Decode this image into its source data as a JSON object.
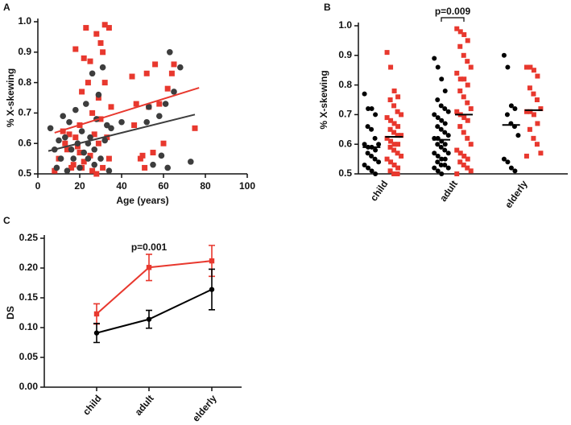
{
  "chart_data": [
    {
      "type": "scatter",
      "panel_label": "A",
      "ylabel": "% X-skewing",
      "xlabel": "Age (years)",
      "xlim": [
        0,
        100
      ],
      "xticks": [
        0,
        20,
        40,
        60,
        80,
        100
      ],
      "ylim": [
        0.5,
        1
      ],
      "yticks": [
        0.5,
        0.6,
        0.7,
        0.8,
        0.9,
        {
          "value": 1,
          "label": "1.0"
        }
      ],
      "series": [
        {
          "color": "#e8382e",
          "marker": "square",
          "x": [
            8,
            10,
            12,
            13,
            14,
            15,
            16,
            17,
            18,
            18,
            19,
            20,
            20,
            21,
            22,
            23,
            24,
            25,
            25,
            26,
            27,
            28,
            28,
            29,
            29,
            30,
            30,
            31,
            31,
            32,
            32,
            33,
            34,
            34,
            35,
            22,
            21,
            26,
            45,
            46,
            47,
            49,
            50,
            51,
            52,
            53,
            55,
            56,
            58,
            60,
            62,
            64,
            65,
            75
          ],
          "values": [
            0.51,
            0.55,
            0.64,
            0.6,
            0.58,
            0.63,
            0.52,
            0.53,
            0.62,
            0.91,
            0.59,
            0.57,
            0.66,
            0.52,
            0.54,
            0.98,
            0.8,
            0.87,
            0.56,
            0.7,
            0.63,
            0.5,
            0.96,
            0.6,
            0.75,
            0.68,
            0.93,
            0.52,
            0.9,
            0.8,
            0.99,
            0.62,
            0.98,
            0.55,
            0.72,
            0.88,
            0.77,
            0.51,
            0.82,
            0.66,
            0.73,
            0.55,
            0.56,
            0.52,
            0.83,
            0.72,
            0.57,
            0.86,
            0.73,
            0.6,
            0.78,
            0.83,
            0.86,
            0.65
          ],
          "trend": {
            "x": [
              8,
              77
            ],
            "values": [
              0.635,
              0.783
            ]
          }
        },
        {
          "color": "#3d3d3d",
          "marker": "circle",
          "x": [
            6,
            8,
            9,
            10,
            11,
            12,
            13,
            14,
            15,
            16,
            17,
            18,
            19,
            20,
            21,
            22,
            23,
            24,
            25,
            26,
            27,
            28,
            29,
            30,
            31,
            32,
            33,
            34,
            35,
            27,
            24,
            40,
            52,
            53,
            55,
            58,
            59,
            61,
            62,
            63,
            65,
            68,
            73
          ],
          "values": [
            0.65,
            0.58,
            0.52,
            0.61,
            0.55,
            0.69,
            0.62,
            0.51,
            0.67,
            0.58,
            0.55,
            0.71,
            0.6,
            0.52,
            0.64,
            0.57,
            0.73,
            0.55,
            0.62,
            0.83,
            0.58,
            0.68,
            0.76,
            0.55,
            0.85,
            0.61,
            0.66,
            0.51,
            0.65,
            0.53,
            0.6,
            0.67,
            0.67,
            0.72,
            0.53,
            0.69,
            0.56,
            0.73,
            0.52,
            0.9,
            0.77,
            0.85,
            0.54
          ],
          "trend": {
            "x": [
              5,
              75
            ],
            "values": [
              0.575,
              0.695
            ]
          }
        }
      ]
    },
    {
      "type": "strip",
      "panel_label": "B",
      "ylabel": "% X-skewing",
      "annotation": "p=0.009",
      "categories": [
        "child",
        "adult",
        "elderly"
      ],
      "ylim": [
        0.5,
        1
      ],
      "yticks": [
        0.5,
        0.6,
        0.7,
        0.8,
        0.9,
        {
          "value": 1,
          "label": "1.0"
        }
      ],
      "series": [
        {
          "color": "#000000",
          "marker": "circle",
          "medians": [
            0.59,
            0.615,
            0.665
          ],
          "values": [
            [
              0.77,
              0.72,
              0.72,
              0.7,
              0.66,
              0.65,
              0.62,
              0.6,
              0.6,
              0.59,
              0.59,
              0.58,
              0.57,
              0.56,
              0.55,
              0.54,
              0.53,
              0.52,
              0.51,
              0.5
            ],
            [
              0.89,
              0.86,
              0.82,
              0.78,
              0.75,
              0.73,
              0.72,
              0.71,
              0.7,
              0.69,
              0.68,
              0.67,
              0.66,
              0.65,
              0.64,
              0.63,
              0.62,
              0.62,
              0.61,
              0.6,
              0.6,
              0.59,
              0.58,
              0.57,
              0.57,
              0.56,
              0.55,
              0.55,
              0.54,
              0.53,
              0.53,
              0.52,
              0.52,
              0.51,
              0.5
            ],
            [
              0.9,
              0.86,
              0.73,
              0.72,
              0.7,
              0.67,
              0.66,
              0.63,
              0.55,
              0.54,
              0.52,
              0.51
            ]
          ]
        },
        {
          "color": "#e8382e",
          "marker": "square",
          "medians": [
            0.625,
            0.7,
            0.715
          ],
          "values": [
            [
              0.91,
              0.86,
              0.78,
              0.76,
              0.75,
              0.73,
              0.71,
              0.7,
              0.69,
              0.68,
              0.67,
              0.66,
              0.65,
              0.64,
              0.63,
              0.63,
              0.62,
              0.61,
              0.6,
              0.6,
              0.59,
              0.58,
              0.57,
              0.56,
              0.55,
              0.54,
              0.53,
              0.52,
              0.51,
              0.5,
              0.5
            ],
            [
              0.99,
              0.98,
              0.97,
              0.95,
              0.93,
              0.9,
              0.88,
              0.86,
              0.84,
              0.82,
              0.82,
              0.8,
              0.78,
              0.76,
              0.74,
              0.72,
              0.71,
              0.7,
              0.69,
              0.68,
              0.66,
              0.64,
              0.62,
              0.6,
              0.58,
              0.57,
              0.56,
              0.55,
              0.54,
              0.53,
              0.52,
              0.51,
              0.5
            ],
            [
              0.86,
              0.86,
              0.85,
              0.83,
              0.79,
              0.77,
              0.75,
              0.72,
              0.71,
              0.71,
              0.7,
              0.67,
              0.65,
              0.62,
              0.6,
              0.57,
              0.56
            ]
          ]
        }
      ]
    },
    {
      "type": "line",
      "panel_label": "C",
      "ylabel": "DS",
      "annotation": "p=0.001",
      "categories": [
        "child",
        "adult",
        "elderly"
      ],
      "ylim": [
        0,
        0.25
      ],
      "yticks": [
        {
          "value": 0,
          "label": "0.00"
        },
        0.05,
        {
          "value": 0.1,
          "label": "0.10"
        },
        0.15,
        {
          "value": 0.2,
          "label": "0.20"
        },
        0.25
      ],
      "series": [
        {
          "color": "#e8382e",
          "marker": "square",
          "values": [
            0.123,
            0.201,
            0.212
          ],
          "errors": [
            0.017,
            0.022,
            0.026
          ]
        },
        {
          "color": "#000000",
          "marker": "circle",
          "values": [
            0.091,
            0.114,
            0.164
          ],
          "errors": [
            0.016,
            0.015,
            0.034
          ]
        }
      ]
    }
  ]
}
